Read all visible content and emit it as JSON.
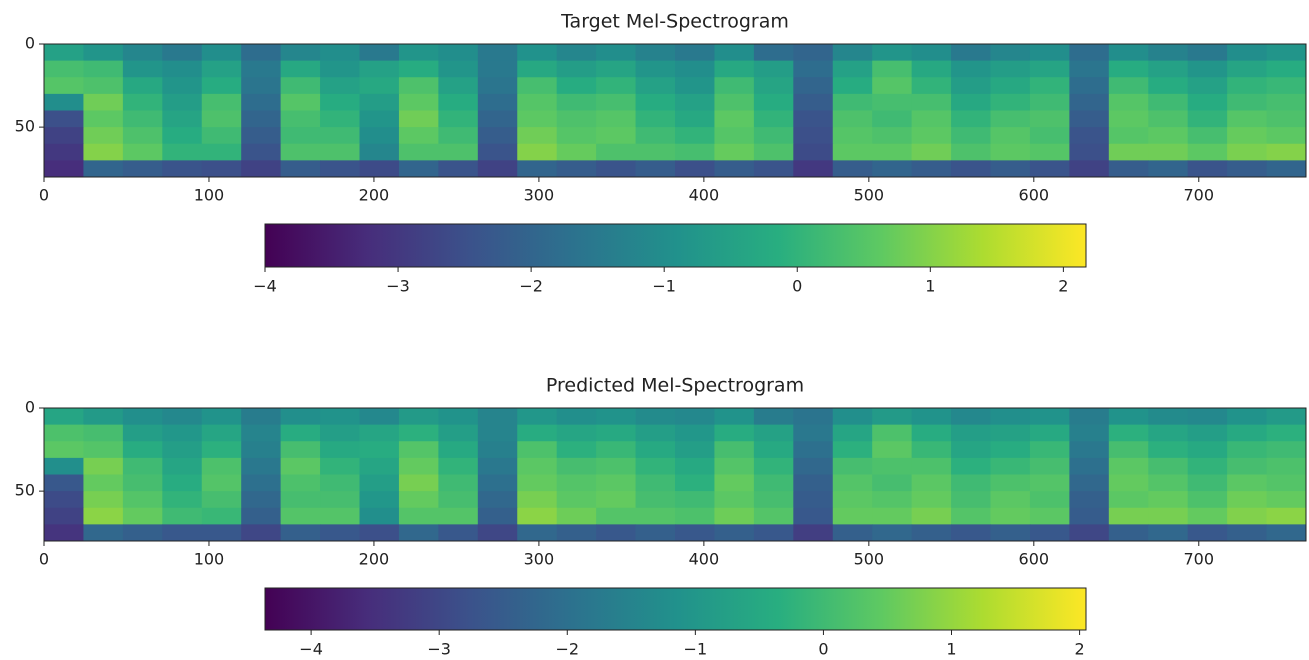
{
  "chart_data": [
    {
      "type": "heatmap",
      "title": "Target Mel-Spectrogram",
      "colormap": "viridis",
      "xlim": [
        0,
        765
      ],
      "ylim": [
        80,
        0
      ],
      "xticks": [
        0,
        100,
        200,
        300,
        400,
        500,
        600,
        700
      ],
      "yticks": [
        0,
        50
      ],
      "clim": [
        -4,
        2.17
      ],
      "cticks": [
        {
          "value": -4,
          "label": "−4"
        },
        {
          "value": -3,
          "label": "−3"
        },
        {
          "value": -2,
          "label": "−2"
        },
        {
          "value": -1,
          "label": "−1"
        },
        0,
        1,
        2
      ],
      "values": [
        [
          -0.5,
          -0.8,
          -1.2,
          -1.5,
          -1.0,
          -1.8,
          -1.2,
          -1.0,
          -1.5,
          -0.8,
          -1.0,
          -1.5,
          -0.9,
          -1.2,
          -1.0,
          -1.3,
          -1.5,
          -1.0,
          -1.8,
          -2.0,
          -1.2,
          -0.8,
          -1.0,
          -1.5,
          -1.2,
          -1.0,
          -1.8,
          -1.0,
          -1.3,
          -1.5,
          -1.0,
          -0.8
        ],
        [
          0.3,
          0.2,
          -0.8,
          -1.0,
          -0.5,
          -1.5,
          -0.3,
          -0.8,
          -0.5,
          -0.2,
          -0.8,
          -1.5,
          -0.3,
          -0.6,
          -0.4,
          -0.8,
          -1.0,
          -0.3,
          -0.6,
          -1.8,
          -0.5,
          0.3,
          -0.3,
          -0.8,
          -0.6,
          -0.4,
          -1.6,
          -0.2,
          -0.5,
          -0.8,
          -0.4,
          -0.2
        ],
        [
          0.5,
          0.4,
          -0.3,
          -0.8,
          -0.2,
          -1.6,
          0.2,
          -0.5,
          -0.3,
          0.4,
          -0.5,
          -1.6,
          0.3,
          -0.2,
          0.0,
          -0.5,
          -0.8,
          0.2,
          -0.4,
          -2.0,
          -0.2,
          0.5,
          0.0,
          -0.6,
          -0.3,
          0.0,
          -1.8,
          0.2,
          -0.2,
          -0.5,
          0.0,
          0.1
        ],
        [
          -1.0,
          0.8,
          0.0,
          -0.6,
          0.3,
          -1.8,
          0.5,
          -0.2,
          -0.6,
          0.6,
          -0.2,
          -1.8,
          0.5,
          0.2,
          0.3,
          -0.2,
          -0.5,
          0.4,
          -0.2,
          -2.2,
          0.2,
          0.3,
          0.3,
          -0.3,
          0.0,
          0.2,
          -2.0,
          0.5,
          0.2,
          -0.2,
          0.2,
          0.3
        ],
        [
          -2.5,
          0.6,
          0.2,
          -0.4,
          0.4,
          -2.0,
          0.3,
          0.0,
          -0.8,
          0.8,
          0.0,
          -2.0,
          0.6,
          0.4,
          0.5,
          0.0,
          -0.3,
          0.6,
          0.0,
          -2.4,
          0.4,
          0.2,
          0.5,
          0.0,
          0.3,
          0.4,
          -2.2,
          0.6,
          0.4,
          0.0,
          0.5,
          0.4
        ],
        [
          -2.8,
          0.8,
          0.4,
          -0.2,
          0.2,
          -2.2,
          0.2,
          0.2,
          -1.0,
          0.6,
          0.2,
          -2.2,
          0.8,
          0.5,
          0.6,
          0.2,
          0.0,
          0.5,
          0.2,
          -2.5,
          0.5,
          0.4,
          0.6,
          0.2,
          0.5,
          0.3,
          -2.4,
          0.5,
          0.6,
          0.3,
          0.7,
          0.6
        ],
        [
          -3.0,
          1.0,
          0.6,
          0.0,
          0.0,
          -2.4,
          0.4,
          0.4,
          -1.2,
          0.4,
          0.4,
          -2.4,
          1.0,
          0.7,
          0.4,
          0.4,
          0.3,
          0.7,
          0.4,
          -2.6,
          0.6,
          0.6,
          0.8,
          0.4,
          0.6,
          0.5,
          -2.5,
          0.8,
          0.8,
          0.6,
          0.9,
          1.0
        ],
        [
          -3.2,
          -2.0,
          -2.2,
          -2.4,
          -2.5,
          -2.8,
          -2.2,
          -2.4,
          -2.6,
          -2.0,
          -2.4,
          -2.8,
          -2.0,
          -2.2,
          -2.4,
          -2.2,
          -2.5,
          -2.2,
          -2.4,
          -3.0,
          -2.2,
          -2.0,
          -2.2,
          -2.4,
          -2.2,
          -2.4,
          -2.8,
          -2.2,
          -2.0,
          -2.4,
          -2.2,
          -2.0
        ]
      ]
    },
    {
      "type": "heatmap",
      "title": "Predicted Mel-Spectrogram",
      "colormap": "viridis",
      "xlim": [
        0,
        765
      ],
      "ylim": [
        80,
        0
      ],
      "xticks": [
        0,
        100,
        200,
        300,
        400,
        500,
        600,
        700
      ],
      "yticks": [
        0,
        50
      ],
      "clim": [
        -4.36,
        2.05
      ],
      "cticks": [
        {
          "value": -4,
          "label": "−4"
        },
        {
          "value": -3,
          "label": "−3"
        },
        {
          "value": -2,
          "label": "−2"
        },
        {
          "value": -1,
          "label": "−1"
        },
        0,
        1,
        2
      ],
      "values": [
        [
          -0.6,
          -0.9,
          -1.2,
          -1.4,
          -1.1,
          -1.7,
          -1.2,
          -1.1,
          -1.4,
          -0.9,
          -1.1,
          -1.5,
          -1.0,
          -1.2,
          -1.1,
          -1.3,
          -1.4,
          -1.1,
          -1.7,
          -1.9,
          -1.2,
          -0.9,
          -1.1,
          -1.4,
          -1.2,
          -1.1,
          -1.7,
          -1.1,
          -1.3,
          -1.4,
          -1.1,
          -0.9
        ],
        [
          0.2,
          0.1,
          -0.8,
          -1.0,
          -0.6,
          -1.5,
          -0.4,
          -0.8,
          -0.6,
          -0.3,
          -0.8,
          -1.5,
          -0.4,
          -0.6,
          -0.5,
          -0.8,
          -1.0,
          -0.4,
          -0.7,
          -1.8,
          -0.6,
          0.2,
          -0.4,
          -0.8,
          -0.7,
          -0.5,
          -1.6,
          -0.3,
          -0.6,
          -0.8,
          -0.5,
          -0.3
        ],
        [
          0.4,
          0.3,
          -0.4,
          -0.8,
          -0.3,
          -1.6,
          0.1,
          -0.5,
          -0.4,
          0.3,
          -0.5,
          -1.6,
          0.2,
          -0.3,
          -0.1,
          -0.5,
          -0.8,
          0.1,
          -0.5,
          -2.0,
          -0.3,
          0.4,
          -0.1,
          -0.6,
          -0.4,
          -0.1,
          -1.8,
          0.1,
          -0.3,
          -0.5,
          -0.1,
          0.0
        ],
        [
          -1.2,
          0.7,
          0.0,
          -0.6,
          0.2,
          -1.8,
          0.4,
          -0.2,
          -0.6,
          0.5,
          -0.2,
          -1.8,
          0.4,
          0.1,
          0.2,
          -0.2,
          -0.5,
          0.3,
          -0.2,
          -2.2,
          0.1,
          0.2,
          0.2,
          -0.3,
          -0.1,
          0.1,
          -2.0,
          0.4,
          0.1,
          -0.2,
          0.1,
          0.2
        ],
        [
          -2.6,
          0.5,
          0.1,
          -0.4,
          0.3,
          -2.0,
          0.2,
          0.0,
          -0.8,
          0.7,
          0.0,
          -2.0,
          0.5,
          0.3,
          0.4,
          0.0,
          -0.3,
          0.5,
          0.0,
          -2.4,
          0.3,
          0.1,
          0.4,
          0.0,
          0.2,
          0.3,
          -2.2,
          0.5,
          0.3,
          0.0,
          0.4,
          0.3
        ],
        [
          -2.9,
          0.7,
          0.3,
          -0.2,
          0.1,
          -2.2,
          0.1,
          0.1,
          -1.0,
          0.5,
          0.1,
          -2.2,
          0.7,
          0.4,
          0.5,
          0.1,
          0.0,
          0.4,
          0.1,
          -2.5,
          0.4,
          0.3,
          0.5,
          0.1,
          0.4,
          0.2,
          -2.4,
          0.4,
          0.5,
          0.2,
          0.6,
          0.5
        ],
        [
          -3.1,
          0.9,
          0.5,
          0.0,
          -0.1,
          -2.4,
          0.3,
          0.3,
          -1.2,
          0.3,
          0.3,
          -2.4,
          0.9,
          0.6,
          0.3,
          0.3,
          0.2,
          0.6,
          0.3,
          -2.6,
          0.5,
          0.5,
          0.7,
          0.3,
          0.5,
          0.4,
          -2.5,
          0.7,
          0.7,
          0.5,
          0.8,
          0.9
        ],
        [
          -3.4,
          -2.2,
          -2.4,
          -2.6,
          -2.6,
          -3.0,
          -2.4,
          -2.6,
          -2.8,
          -2.2,
          -2.6,
          -3.0,
          -2.2,
          -2.4,
          -2.6,
          -2.4,
          -2.6,
          -2.4,
          -2.6,
          -3.2,
          -2.4,
          -2.2,
          -2.4,
          -2.6,
          -2.4,
          -2.6,
          -3.0,
          -2.4,
          -2.2,
          -2.6,
          -2.4,
          -2.2
        ]
      ]
    }
  ]
}
